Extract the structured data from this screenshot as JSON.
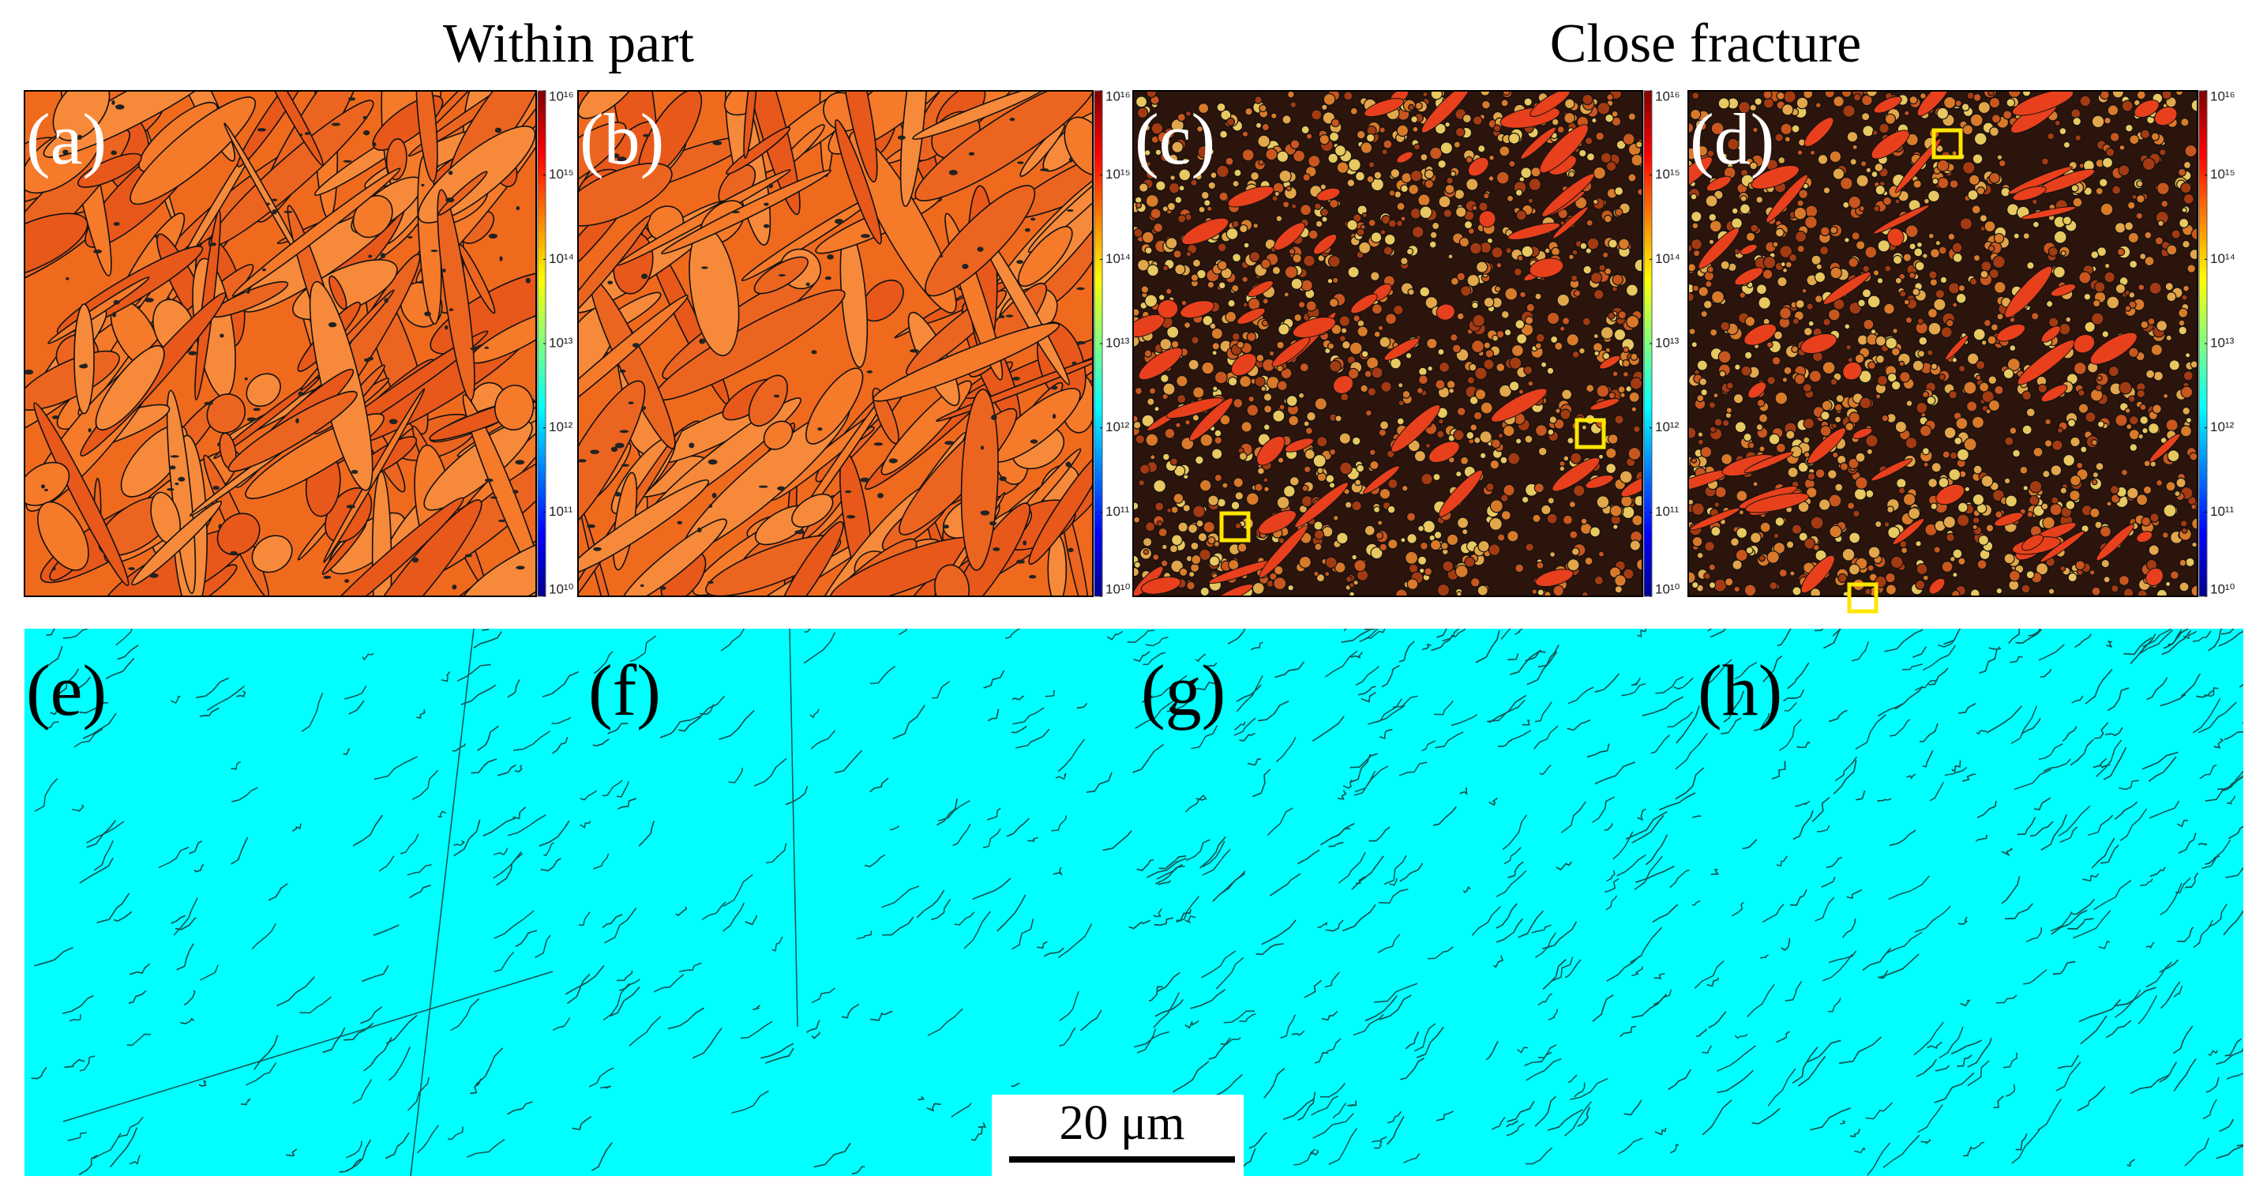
{
  "headings": [
    "Within part",
    "Close fracture"
  ],
  "panels": {
    "top": [
      "(a)",
      "(b)",
      "(c)",
      "(d)"
    ],
    "bottom": [
      "(e)",
      "(f)",
      "(g)",
      "(h)"
    ]
  },
  "colorbar": {
    "scale": "log",
    "colormap": "jet",
    "range": [
      10000000000.0,
      1e+16
    ],
    "ticks": [
      {
        "value": 10000000000.0,
        "label": "10¹⁰"
      },
      {
        "value": 100000000000.0,
        "label": "10¹¹"
      },
      {
        "value": 1000000000000.0,
        "label": "10¹²"
      },
      {
        "value": 10000000000000.0,
        "label": "10¹³"
      },
      {
        "value": 100000000000000.0,
        "label": "10¹⁴"
      },
      {
        "value": 1000000000000000.0,
        "label": "10¹⁵"
      },
      {
        "value": 1e+16,
        "label": "10¹⁶"
      }
    ]
  },
  "scale_bar": {
    "label": "20 μm"
  }
}
